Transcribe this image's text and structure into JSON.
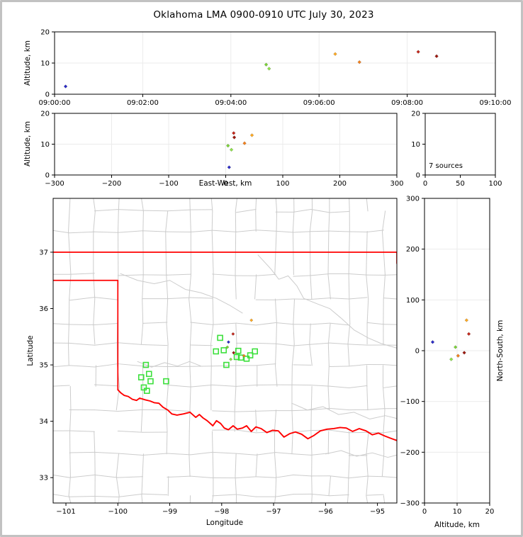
{
  "title": "Oklahoma LMA 0900-0910 UTC July 30, 2023",
  "labels": {
    "altitude_axis": "Altitude, km",
    "east_west_axis": "East-West, km",
    "latitude_axis": "Latitude",
    "longitude_axis": "Longitude",
    "north_south_axis": "North-South, km",
    "sources_annotation": "7 sources"
  },
  "colors": {
    "state_border": "#ff0000",
    "county_line": "#cccccc",
    "river_line": "#cccccc",
    "gridline": "#ebebeb",
    "frame": "#000000",
    "flash_square": "#3ce03c",
    "background": "#ffffff",
    "figure_border": "#c2c2c2"
  },
  "chart_data": {
    "type": "scatter",
    "title": "Oklahoma LMA 0900-0910 UTC July 30, 2023",
    "panels": [
      {
        "id": "time-altitude",
        "ylabel": "Altitude, km",
        "x_ticks": [
          "09:00:00",
          "09:02:00",
          "09:04:00",
          "09:06:00",
          "09:08:00",
          "09:10:00"
        ],
        "x_tick_seconds": [
          0,
          120,
          240,
          360,
          480,
          600
        ],
        "x_range_seconds": [
          0,
          600
        ],
        "y_ticks": [
          0,
          10,
          20
        ],
        "y_range": [
          0,
          20
        ],
        "grid": true
      },
      {
        "id": "ew-altitude",
        "xlabel": "East-West, km",
        "ylabel": "Altitude, km",
        "x_ticks": [
          -300,
          -200,
          -100,
          0,
          100,
          200,
          300
        ],
        "x_range": [
          -300,
          300
        ],
        "y_ticks": [
          0,
          10,
          20
        ],
        "y_range": [
          0,
          20
        ],
        "grid": true
      },
      {
        "id": "altitude-histogram",
        "annotation": "7 sources",
        "x_ticks": [
          0,
          50,
          100
        ],
        "x_range": [
          0,
          100
        ],
        "y_ticks": [
          0,
          10,
          20
        ],
        "y_range": [
          0,
          20
        ],
        "grid": false
      },
      {
        "id": "map",
        "xlabel": "Longitude",
        "ylabel": "Latitude",
        "x_ticks": [
          -101,
          -100,
          -99,
          -98,
          -97,
          -96,
          -95
        ],
        "x_range": [
          -101.246,
          -94.626
        ],
        "y_ticks": [
          33,
          34,
          35,
          36,
          37
        ],
        "y_range": [
          32.55,
          37.955
        ],
        "grid": false
      },
      {
        "id": "ns-altitude",
        "xlabel": "Altitude, km",
        "ylabel": "North-South, km",
        "x_ticks": [
          0,
          10,
          20
        ],
        "x_range": [
          0,
          20
        ],
        "y_ticks": [
          -300,
          -200,
          -100,
          0,
          100,
          200,
          300
        ],
        "y_range": [
          -300,
          300
        ],
        "grid": true
      }
    ],
    "sources": [
      {
        "time": "09:00:15",
        "t_s": 15,
        "alt_km": 2.5,
        "ew_km": 6,
        "ns_km": 17,
        "color": "#2b2bc8"
      },
      {
        "time": "09:04:48",
        "t_s": 288,
        "alt_km": 9.5,
        "ew_km": 4,
        "ns_km": 7,
        "color": "#7cd438"
      },
      {
        "time": "09:04:52",
        "t_s": 292,
        "alt_km": 8.2,
        "ew_km": 10,
        "ns_km": -17,
        "color": "#90e44c"
      },
      {
        "time": "09:06:22",
        "t_s": 382,
        "alt_km": 12.9,
        "ew_km": 46,
        "ns_km": 60,
        "color": "#ffaa22"
      },
      {
        "time": "09:06:55",
        "t_s": 415,
        "alt_km": 10.3,
        "ew_km": 33,
        "ns_km": -10,
        "color": "#f5821e"
      },
      {
        "time": "09:08:15",
        "t_s": 495,
        "alt_km": 13.6,
        "ew_km": 14,
        "ns_km": 33,
        "color": "#c5281c"
      },
      {
        "time": "09:08:40",
        "t_s": 520,
        "alt_km": 12.2,
        "ew_km": 15,
        "ns_km": -4,
        "color": "#9e1a10"
      }
    ],
    "source_count": 7,
    "map_center_lonlat": [
      -97.935,
      35.252
    ],
    "km_per_deg_lon": 90.7,
    "km_per_deg_lat": 111,
    "flash_squares_lonlat": [
      [
        -98.03,
        35.48
      ],
      [
        -98.11,
        35.24
      ],
      [
        -97.96,
        35.26
      ],
      [
        -97.68,
        35.25
      ],
      [
        -97.71,
        35.14
      ],
      [
        -97.63,
        35.13
      ],
      [
        -97.52,
        35.11
      ],
      [
        -97.45,
        35.17
      ],
      [
        -97.36,
        35.24
      ],
      [
        -97.91,
        35.0
      ],
      [
        -99.46,
        35.0
      ],
      [
        -99.4,
        34.84
      ],
      [
        -99.55,
        34.78
      ],
      [
        -99.37,
        34.71
      ],
      [
        -99.07,
        34.71
      ],
      [
        -99.5,
        34.6
      ],
      [
        -99.44,
        34.54
      ]
    ],
    "state_border": {
      "kansas_line": [
        [
          -101.246,
          37.0
        ],
        [
          -94.626,
          37.0
        ]
      ],
      "east_edge_segment": [
        [
          -94.626,
          37.0
        ],
        [
          -94.626,
          36.8
        ]
      ],
      "panhandle": [
        [
          -101.246,
          36.5
        ],
        [
          -100.0,
          36.5
        ],
        [
          -100.0,
          34.56
        ]
      ],
      "red_river": [
        [
          -100.0,
          34.56
        ],
        [
          -99.95,
          34.51
        ],
        [
          -99.88,
          34.46
        ],
        [
          -99.8,
          34.44
        ],
        [
          -99.72,
          34.39
        ],
        [
          -99.64,
          34.37
        ],
        [
          -99.58,
          34.41
        ],
        [
          -99.47,
          34.38
        ],
        [
          -99.38,
          34.36
        ],
        [
          -99.3,
          34.33
        ],
        [
          -99.21,
          34.32
        ],
        [
          -99.13,
          34.25
        ],
        [
          -99.04,
          34.2
        ],
        [
          -98.96,
          34.13
        ],
        [
          -98.86,
          34.11
        ],
        [
          -98.74,
          34.13
        ],
        [
          -98.61,
          34.16
        ],
        [
          -98.5,
          34.07
        ],
        [
          -98.43,
          34.12
        ],
        [
          -98.36,
          34.06
        ],
        [
          -98.28,
          34.01
        ],
        [
          -98.17,
          33.92
        ],
        [
          -98.1,
          34.01
        ],
        [
          -98.02,
          33.96
        ],
        [
          -97.95,
          33.88
        ],
        [
          -97.87,
          33.85
        ],
        [
          -97.78,
          33.92
        ],
        [
          -97.7,
          33.86
        ],
        [
          -97.6,
          33.88
        ],
        [
          -97.52,
          33.92
        ],
        [
          -97.43,
          33.82
        ],
        [
          -97.34,
          33.9
        ],
        [
          -97.24,
          33.87
        ],
        [
          -97.13,
          33.8
        ],
        [
          -97.02,
          33.84
        ],
        [
          -96.91,
          33.83
        ],
        [
          -96.8,
          33.72
        ],
        [
          -96.69,
          33.78
        ],
        [
          -96.58,
          33.81
        ],
        [
          -96.46,
          33.77
        ],
        [
          -96.34,
          33.69
        ],
        [
          -96.22,
          33.75
        ],
        [
          -96.1,
          33.83
        ],
        [
          -95.97,
          33.86
        ],
        [
          -95.84,
          33.87
        ],
        [
          -95.72,
          33.89
        ],
        [
          -95.6,
          33.88
        ],
        [
          -95.48,
          33.82
        ],
        [
          -95.35,
          33.87
        ],
        [
          -95.22,
          33.83
        ],
        [
          -95.1,
          33.76
        ],
        [
          -94.98,
          33.79
        ],
        [
          -94.86,
          33.74
        ],
        [
          -94.75,
          33.7
        ],
        [
          -94.63,
          33.66
        ]
      ]
    },
    "rivers": [
      [
        [
          -97.3,
          36.95
        ],
        [
          -97.05,
          36.7
        ],
        [
          -96.9,
          36.52
        ],
        [
          -96.72,
          36.58
        ],
        [
          -96.55,
          36.4
        ],
        [
          -96.42,
          36.18
        ],
        [
          -96.15,
          36.08
        ],
        [
          -95.92,
          36.0
        ],
        [
          -95.7,
          35.83
        ],
        [
          -95.45,
          35.62
        ],
        [
          -95.18,
          35.48
        ],
        [
          -94.93,
          35.38
        ],
        [
          -94.63,
          35.3
        ]
      ],
      [
        [
          -99.95,
          36.62
        ],
        [
          -99.62,
          36.5
        ],
        [
          -99.3,
          36.44
        ],
        [
          -99.0,
          36.5
        ],
        [
          -98.7,
          36.34
        ],
        [
          -98.4,
          36.28
        ],
        [
          -98.1,
          36.18
        ],
        [
          -97.85,
          36.06
        ],
        [
          -97.6,
          35.92
        ]
      ],
      [
        [
          -99.62,
          35.06
        ],
        [
          -99.35,
          34.96
        ],
        [
          -99.1,
          35.04
        ],
        [
          -98.85,
          34.98
        ],
        [
          -98.62,
          35.06
        ],
        [
          -98.4,
          34.98
        ]
      ],
      [
        [
          -96.65,
          34.32
        ],
        [
          -96.35,
          34.2
        ],
        [
          -96.05,
          34.26
        ],
        [
          -95.75,
          34.12
        ],
        [
          -95.45,
          34.16
        ],
        [
          -95.15,
          34.04
        ],
        [
          -94.85,
          34.1
        ],
        [
          -94.63,
          34.05
        ]
      ],
      [
        [
          -96.0,
          33.42
        ],
        [
          -95.7,
          33.48
        ],
        [
          -95.4,
          33.38
        ],
        [
          -95.1,
          33.44
        ],
        [
          -94.8,
          33.36
        ],
        [
          -94.63,
          33.4
        ]
      ]
    ],
    "county_grid": {
      "lon_lines": [
        -100.93,
        -100.45,
        -100.0,
        -99.52,
        -99.05,
        -98.6,
        -98.18,
        -97.72,
        -97.34,
        -96.96,
        -96.62,
        -96.28,
        -95.92,
        -95.55,
        -95.2,
        -94.88
      ],
      "lat_lines": [
        37.73,
        37.37,
        36.6,
        36.17,
        35.73,
        35.37,
        34.99,
        34.62,
        34.2,
        33.82,
        33.42,
        33.02,
        32.68
      ],
      "jitter_deg": 0.06,
      "segment_keep_probability": 0.8
    }
  }
}
